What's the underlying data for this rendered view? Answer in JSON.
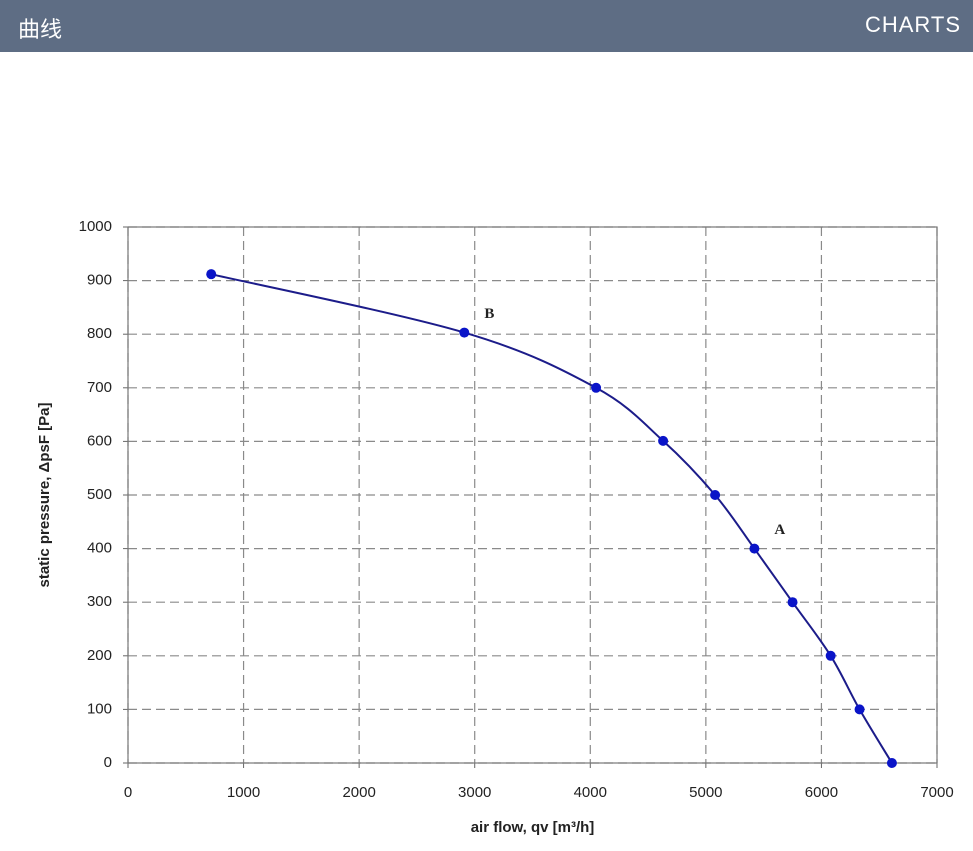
{
  "header": {
    "title": "曲线",
    "label": "CHARTS"
  },
  "chart_data": {
    "type": "line",
    "xlabel": "air flow, qv [m³/h]",
    "ylabel": "static pressure, ΔpsF [Pa]",
    "x": [
      720,
      2910,
      4050,
      4630,
      5080,
      5420,
      5750,
      6080,
      6330,
      6610
    ],
    "series": [
      {
        "color": "#1c1c8a",
        "marker_color": "#0a14c8",
        "values": [
          912,
          803,
          700,
          601,
          500,
          400,
          300,
          200,
          100,
          0
        ]
      }
    ],
    "annotations": [
      "B",
      "A"
    ],
    "xlim": [
      0,
      7000
    ],
    "xticks": [
      0,
      1000,
      2000,
      3000,
      4000,
      5000,
      6000,
      7000
    ],
    "ylim": [
      0,
      1000
    ],
    "yticks": [
      0,
      100,
      200,
      300,
      400,
      500,
      600,
      700,
      800,
      900,
      1000
    ],
    "grid": true
  }
}
